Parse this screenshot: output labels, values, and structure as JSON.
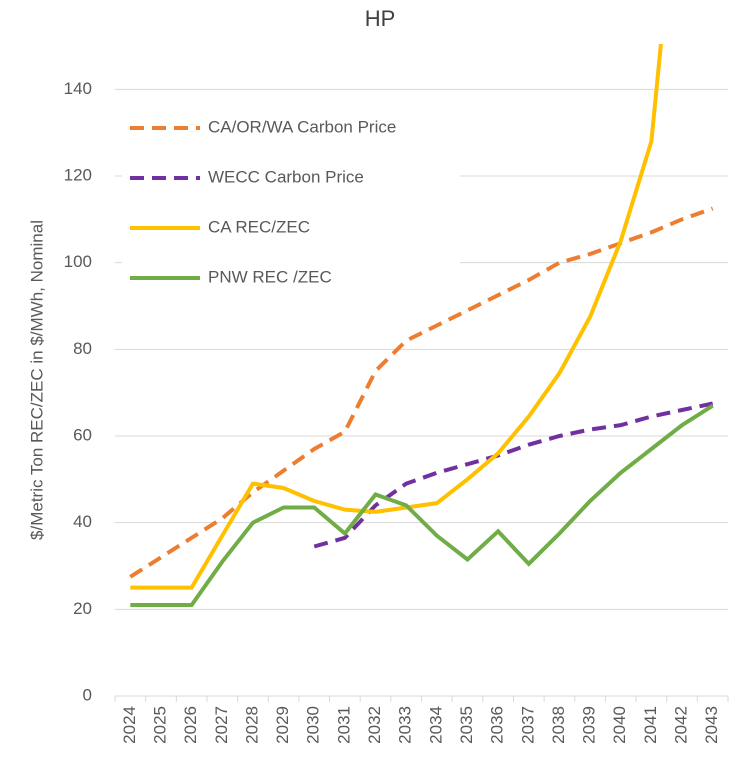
{
  "chart_data": {
    "type": "line",
    "title": "HP",
    "y_label": "$/Metric Ton  REC/ZEC in $/MWh, Nominal",
    "categories": [
      "2024",
      "2025",
      "2026",
      "2027",
      "2028",
      "2029",
      "2030",
      "2031",
      "2032",
      "2033",
      "2034",
      "2035",
      "2036",
      "2037",
      "2038",
      "2039",
      "2040",
      "2041",
      "2042",
      "2043"
    ],
    "ylim": [
      0,
      150
    ],
    "yticks": [
      0,
      20,
      40,
      60,
      80,
      100,
      120,
      140
    ],
    "grid": true,
    "legend": "upper left",
    "series": [
      {
        "name": "CA/OR/WA Carbon Price",
        "color": "#ED7D31",
        "dashed": true,
        "values": [
          27.5,
          32,
          36.5,
          41,
          47,
          52,
          57,
          61,
          75,
          82,
          85.5,
          89,
          92.5,
          96,
          100,
          102,
          104.5,
          107,
          110,
          112.5
        ]
      },
      {
        "name": "WECC Carbon Price",
        "color": "#7030A0",
        "dashed": true,
        "values": [
          null,
          null,
          null,
          null,
          null,
          null,
          34.5,
          36.5,
          44,
          49,
          51.5,
          53.5,
          55.5,
          58,
          60,
          61.5,
          62.5,
          64.5,
          66,
          67.5
        ]
      },
      {
        "name": "CA REC/ZEC",
        "color": "#FFC000",
        "dashed": false,
        "values": [
          25,
          25,
          25,
          37,
          49,
          48,
          45,
          43,
          42.5,
          43.5,
          44.5,
          50,
          56,
          64.5,
          74.5,
          87.5,
          105,
          128,
          200,
          null
        ]
      },
      {
        "name": "PNW REC /ZEC",
        "color": "#70AD47",
        "dashed": false,
        "values": [
          21,
          21,
          21,
          31,
          40,
          43.5,
          43.5,
          37.5,
          46.5,
          44,
          37,
          31.5,
          38,
          30.5,
          37.5,
          45,
          51.5,
          57,
          62.5,
          67
        ]
      }
    ]
  }
}
